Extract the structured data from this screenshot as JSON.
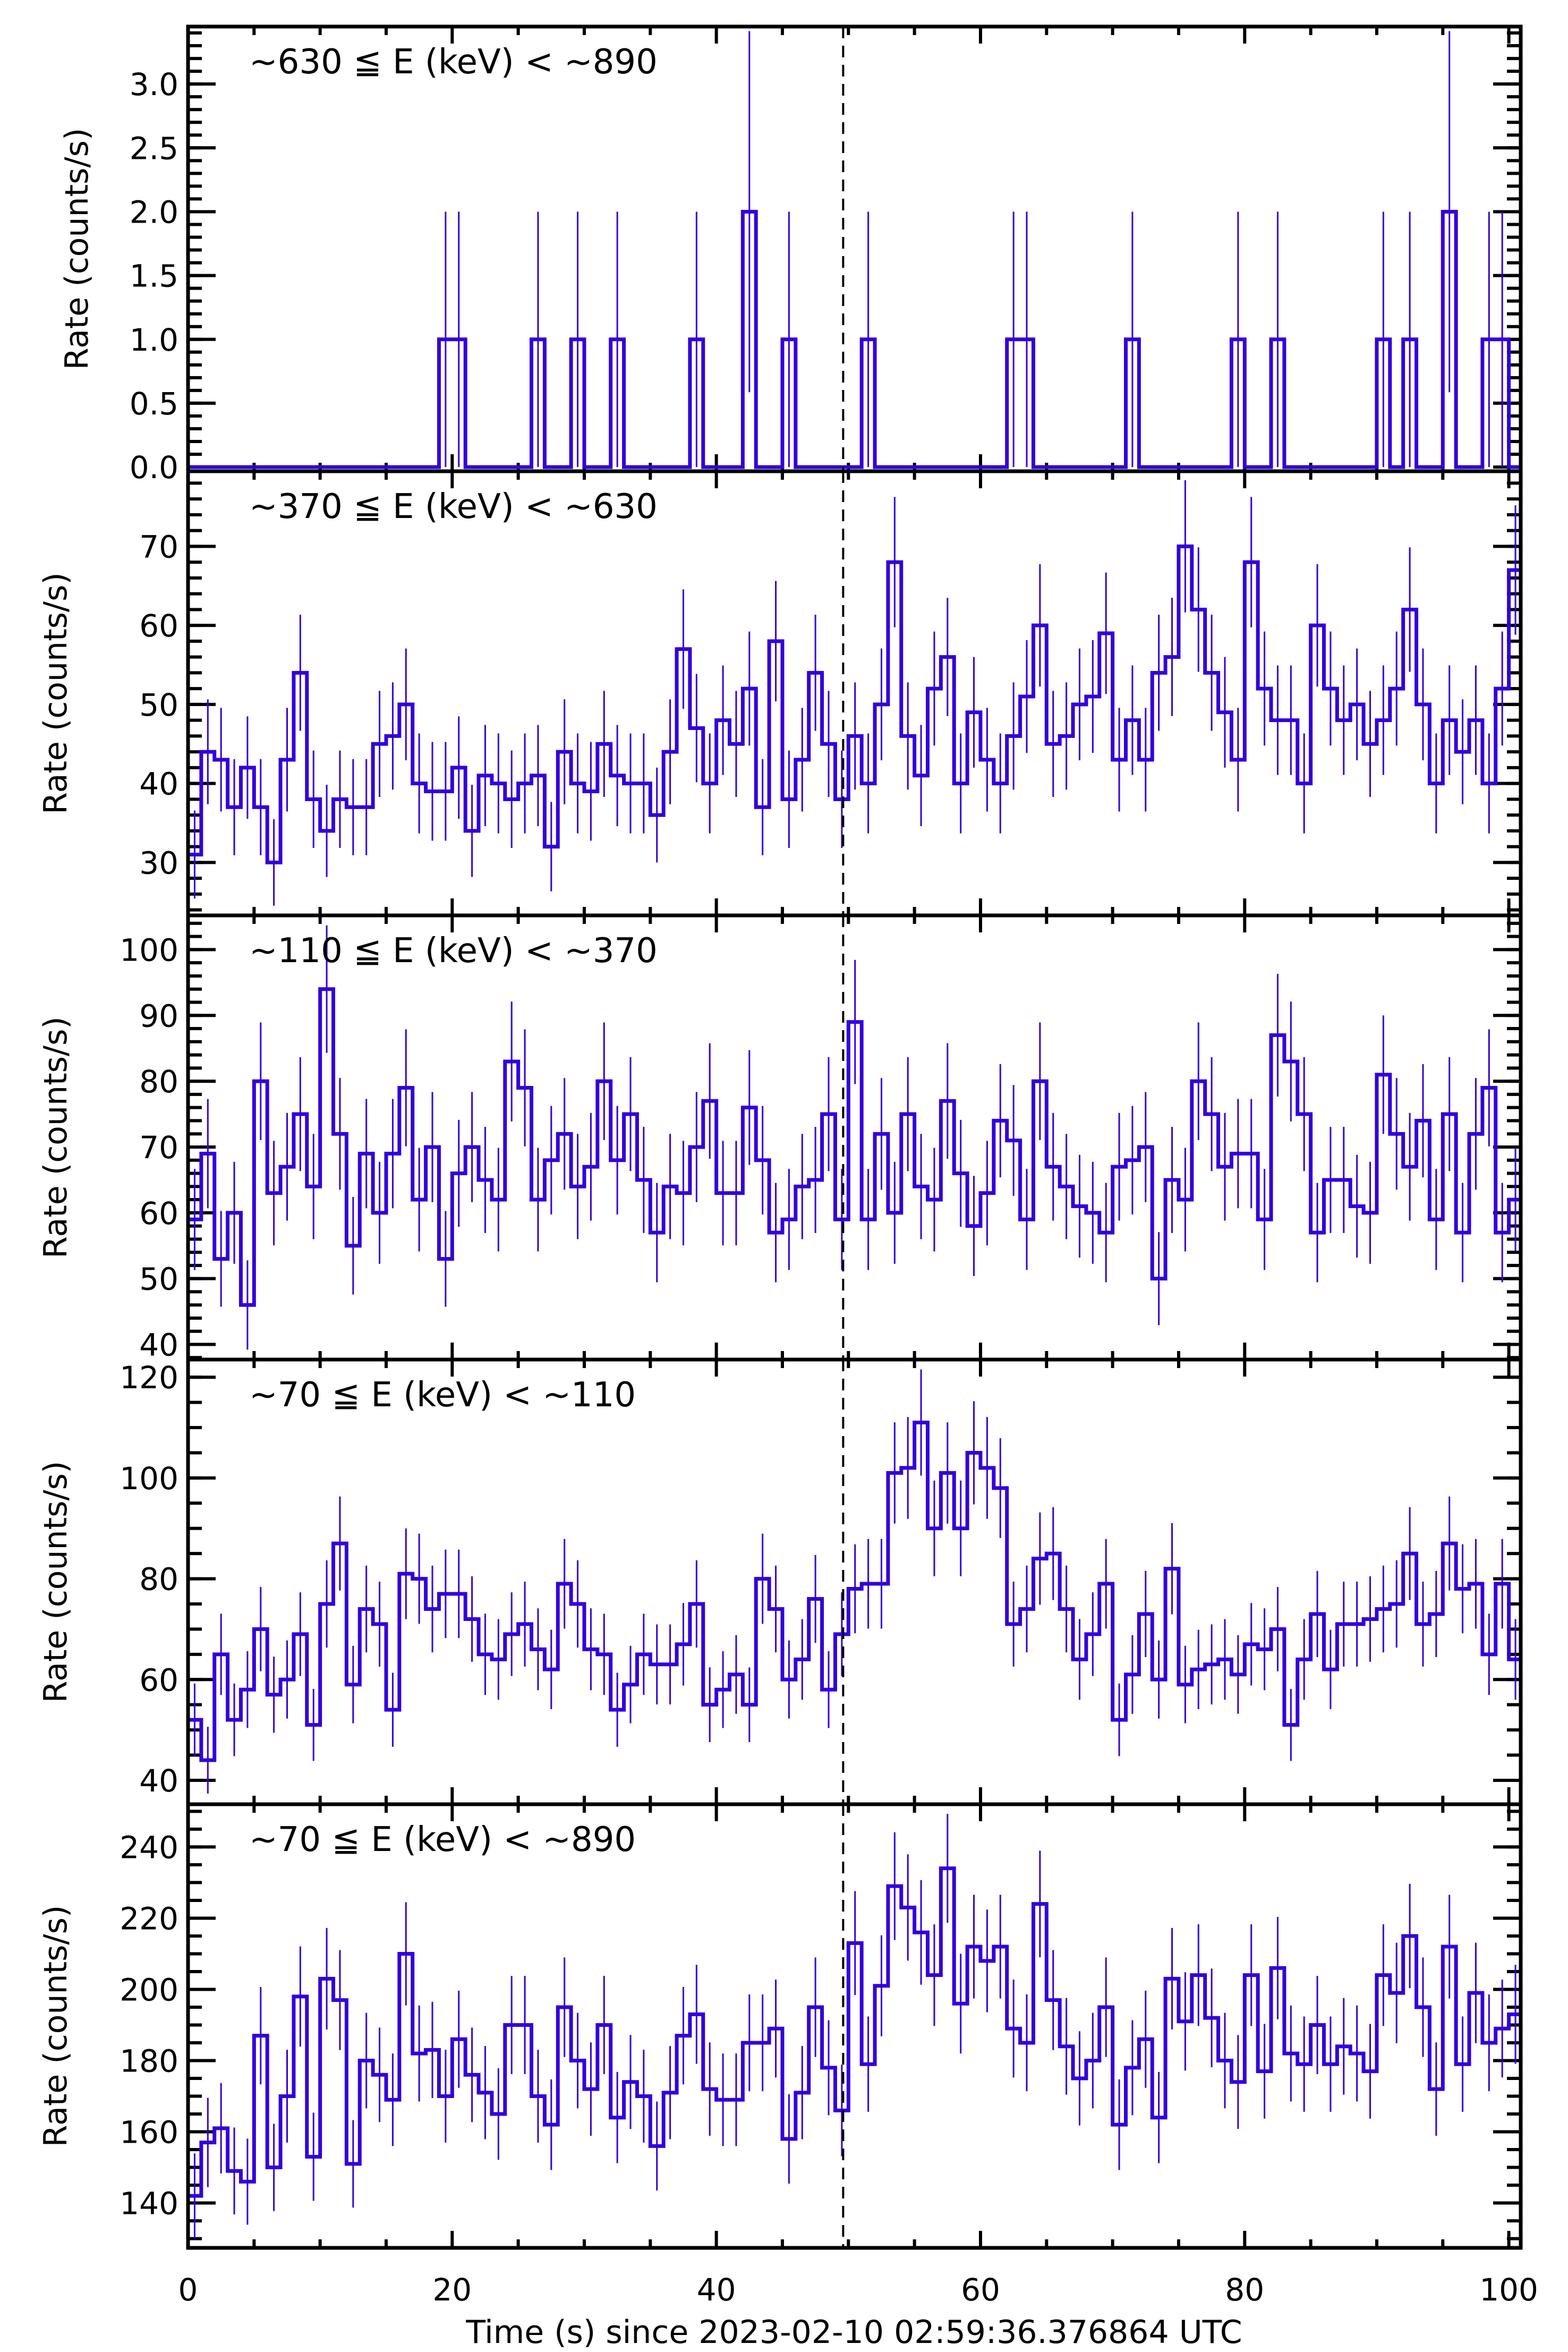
{
  "chart_data": {
    "type": "line",
    "style": "step histogram with error bars",
    "line_color": "#3300dd",
    "marker_line_color": "#000000",
    "x": {
      "label": "Time (s) since 2023-02-10 02:59:36.376864 UTC",
      "range": [
        0,
        100.9
      ],
      "ticks": [
        0,
        20,
        40,
        60,
        80,
        100
      ],
      "tick_labels": [
        "0",
        "20",
        "40",
        "60",
        "80",
        "100"
      ],
      "minor_step": 5,
      "bin_width": 1,
      "bin_start": 0
    },
    "reference_line": {
      "x": 49.6,
      "style": "dashed"
    },
    "error_bars": true,
    "panels": [
      {
        "energy_label": "~630 ≦ E (keV) < ~890",
        "ylabel": "Rate (counts/s)",
        "ylim": [
          -0.033,
          3.45
        ],
        "yticks": [
          0.0,
          0.5,
          1.0,
          1.5,
          2.0,
          2.5,
          3.0
        ],
        "ytick_labels": [
          "0.0",
          "0.5",
          "1.0",
          "1.5",
          "2.0",
          "2.5",
          "3.0"
        ],
        "yminor_step": 0.1,
        "values": [
          0,
          0,
          0,
          0,
          0,
          0,
          0,
          0,
          0,
          0,
          0,
          0,
          0,
          0,
          0,
          0,
          0,
          0,
          0,
          1,
          1,
          0,
          0,
          0,
          0,
          0,
          1,
          0,
          0,
          1,
          0,
          0,
          1,
          0,
          0,
          0,
          0,
          0,
          1,
          0,
          0,
          0,
          2,
          0,
          0,
          1,
          0,
          0,
          0,
          0,
          0,
          1,
          0,
          0,
          0,
          0,
          0,
          0,
          0,
          0,
          0,
          0,
          1,
          1,
          0,
          0,
          0,
          0,
          0,
          0,
          0,
          1,
          0,
          0,
          0,
          0,
          0,
          0,
          0,
          1,
          0,
          0,
          1,
          0,
          0,
          0,
          0,
          0,
          0,
          0,
          1,
          0,
          1,
          0,
          0,
          2,
          0,
          0,
          1,
          1,
          0
        ]
      },
      {
        "energy_label": "~370 ≦ E (keV) < ~630",
        "ylabel": "Rate (counts/s)",
        "ylim": [
          23.3,
          79.5
        ],
        "yticks": [
          30,
          40,
          50,
          60,
          70
        ],
        "ytick_labels": [
          "30",
          "40",
          "50",
          "60",
          "70"
        ],
        "yminor_step": 2,
        "values": [
          31,
          44,
          43,
          37,
          42,
          37,
          30,
          43,
          54,
          38,
          34,
          38,
          37,
          37,
          45,
          46,
          50,
          40,
          39,
          39,
          42,
          34,
          41,
          40,
          38,
          40,
          41,
          32,
          44,
          40,
          39,
          45,
          41,
          40,
          40,
          36,
          44,
          57,
          47,
          40,
          48,
          45,
          52,
          37,
          58,
          38,
          43,
          54,
          45,
          38,
          46,
          40,
          50,
          68,
          46,
          41,
          52,
          56,
          40,
          49,
          43,
          40,
          46,
          51,
          60,
          45,
          46,
          50,
          51,
          59,
          43,
          48,
          43,
          54,
          56,
          70,
          62,
          54,
          49,
          43,
          68,
          52,
          48,
          48,
          40,
          60,
          52,
          48,
          50,
          45,
          48,
          52,
          62,
          50,
          40,
          48,
          44,
          48,
          40,
          52,
          67
        ]
      },
      {
        "energy_label": "~110 ≦ E (keV) < ~370",
        "ylabel": "Rate (counts/s)",
        "ylim": [
          37.7,
          105.2
        ],
        "yticks": [
          40,
          50,
          60,
          70,
          80,
          90,
          100
        ],
        "ytick_labels": [
          "40",
          "50",
          "60",
          "70",
          "80",
          "90",
          "100"
        ],
        "yminor_step": 2,
        "values": [
          59,
          69,
          53,
          60,
          46,
          80,
          63,
          67,
          75,
          64,
          94,
          72,
          55,
          69,
          60,
          69,
          79,
          62,
          70,
          53,
          66,
          70,
          65,
          62,
          83,
          79,
          62,
          68,
          72,
          64,
          67,
          80,
          68,
          75,
          65,
          57,
          64,
          63,
          70,
          77,
          63,
          63,
          76,
          68,
          57,
          59,
          64,
          65,
          75,
          59,
          89,
          59,
          72,
          60,
          75,
          64,
          62,
          77,
          66,
          58,
          63,
          74,
          71,
          59,
          80,
          67,
          64,
          61,
          60,
          57,
          67,
          68,
          70,
          50,
          65,
          62,
          80,
          75,
          67,
          69,
          69,
          59,
          87,
          83,
          75,
          57,
          65,
          65,
          61,
          60,
          81,
          72,
          67,
          74,
          59,
          75,
          57,
          72,
          79,
          57,
          62
        ]
      },
      {
        "energy_label": "~70 ≦ E (keV) < ~110",
        "ylabel": "Rate (counts/s)",
        "ylim": [
          35.25,
          123.5
        ],
        "yticks": [
          40,
          60,
          80,
          100,
          120
        ],
        "ytick_labels": [
          "40",
          "60",
          "80",
          "100",
          "120"
        ],
        "yminor_step": 5,
        "values": [
          52,
          44,
          65,
          52,
          58,
          70,
          57,
          60,
          69,
          51,
          75,
          87,
          59,
          74,
          71,
          54,
          81,
          80,
          74,
          77,
          77,
          72,
          65,
          64,
          69,
          71,
          66,
          62,
          79,
          75,
          66,
          65,
          54,
          59,
          65,
          63,
          63,
          67,
          75,
          55,
          58,
          61,
          55,
          80,
          74,
          60,
          64,
          76,
          58,
          69,
          78,
          79,
          79,
          101,
          102,
          111,
          90,
          101,
          90,
          105,
          102,
          98,
          71,
          74,
          84,
          85,
          74,
          64,
          69,
          79,
          52,
          61,
          73,
          60,
          82,
          59,
          62,
          63,
          64,
          61,
          67,
          66,
          70,
          51,
          64,
          73,
          62,
          71,
          71,
          72,
          74,
          75,
          85,
          71,
          73,
          87,
          78,
          79,
          65,
          79,
          64
        ]
      },
      {
        "energy_label": "~70 ≦ E (keV) < ~890",
        "ylabel": "Rate (counts/s)",
        "ylim": [
          127.4,
          252
        ],
        "yticks": [
          140,
          160,
          180,
          200,
          220,
          240
        ],
        "ytick_labels": [
          "140",
          "160",
          "180",
          "200",
          "220",
          "240"
        ],
        "yminor_step": 5,
        "values": [
          142,
          157,
          161,
          149,
          146,
          187,
          150,
          170,
          198,
          153,
          203,
          197,
          151,
          180,
          176,
          169,
          210,
          182,
          183,
          170,
          186,
          176,
          171,
          165,
          190,
          190,
          170,
          162,
          195,
          180,
          172,
          190,
          164,
          174,
          170,
          156,
          171,
          187,
          193,
          172,
          169,
          169,
          185,
          185,
          189,
          158,
          171,
          195,
          178,
          166,
          213,
          179,
          201,
          229,
          223,
          216,
          204,
          234,
          196,
          212,
          208,
          212,
          189,
          185,
          224,
          197,
          184,
          175,
          180,
          195,
          162,
          178,
          186,
          164,
          203,
          191,
          204,
          192,
          180,
          174,
          204,
          177,
          206,
          182,
          179,
          190,
          179,
          184,
          182,
          177,
          204,
          199,
          215,
          195,
          172,
          212,
          179,
          199,
          185,
          189,
          193
        ]
      }
    ]
  }
}
